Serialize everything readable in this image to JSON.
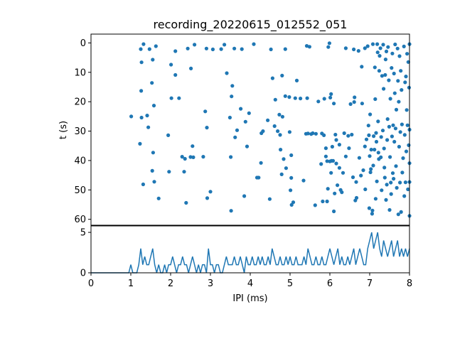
{
  "chart_data": [
    {
      "type": "scatter",
      "panel": "raster",
      "title": "recording_20220615_012552_051",
      "xlabel": "",
      "ylabel": "t (s)",
      "xlim": [
        0,
        8
      ],
      "ylim": [
        62,
        -3
      ],
      "y_inverted": true,
      "y_ticks": [
        0,
        10,
        20,
        30,
        40,
        50,
        60
      ],
      "color": "#1f77b4",
      "points": [
        [
          1.01,
          25.0
        ],
        [
          1.23,
          34.3
        ],
        [
          1.25,
          2.1
        ],
        [
          1.26,
          16.3
        ],
        [
          1.27,
          6.6
        ],
        [
          1.27,
          25.4
        ],
        [
          1.31,
          48.1
        ],
        [
          1.32,
          0.4
        ],
        [
          1.41,
          24.7
        ],
        [
          1.44,
          28.7
        ],
        [
          1.47,
          2.1
        ],
        [
          1.53,
          13.6
        ],
        [
          1.54,
          43.5
        ],
        [
          1.55,
          5.7
        ],
        [
          1.56,
          37.3
        ],
        [
          1.58,
          21.3
        ],
        [
          1.59,
          47.2
        ],
        [
          1.63,
          1.1
        ],
        [
          1.7,
          52.9
        ],
        [
          1.94,
          31.4
        ],
        [
          1.96,
          43.8
        ],
        [
          2.01,
          7.4
        ],
        [
          2.02,
          18.8
        ],
        [
          2.12,
          2.8
        ],
        [
          2.12,
          10.9
        ],
        [
          2.21,
          18.8
        ],
        [
          2.29,
          38.7
        ],
        [
          2.34,
          43.8
        ],
        [
          2.36,
          39.4
        ],
        [
          2.39,
          54.4
        ],
        [
          2.43,
          1.9
        ],
        [
          2.5,
          38.8
        ],
        [
          2.51,
          8.7
        ],
        [
          2.55,
          35.1
        ],
        [
          2.57,
          38.9
        ],
        [
          2.6,
          0.6
        ],
        [
          2.82,
          38.7
        ],
        [
          2.87,
          23.3
        ],
        [
          2.9,
          1.9
        ],
        [
          2.91,
          28.8
        ],
        [
          2.92,
          52.8
        ],
        [
          3.0,
          50.6
        ],
        [
          3.06,
          2.2
        ],
        [
          3.27,
          2.1
        ],
        [
          3.35,
          0.6
        ],
        [
          3.41,
          10.3
        ],
        [
          3.49,
          25.4
        ],
        [
          3.51,
          38.8
        ],
        [
          3.52,
          57.1
        ],
        [
          3.53,
          18.2
        ],
        [
          3.55,
          14.6
        ],
        [
          3.6,
          1.9
        ],
        [
          3.62,
          32.1
        ],
        [
          3.67,
          29.7
        ],
        [
          3.76,
          22.4
        ],
        [
          3.79,
          2.1
        ],
        [
          3.85,
          52.1
        ],
        [
          3.88,
          26.8
        ],
        [
          3.92,
          35.2
        ],
        [
          3.97,
          23.9
        ],
        [
          4.09,
          0.4
        ],
        [
          4.17,
          45.8
        ],
        [
          4.21,
          45.8
        ],
        [
          4.27,
          40.8
        ],
        [
          4.28,
          30.7
        ],
        [
          4.32,
          30.0
        ],
        [
          4.44,
          26.3
        ],
        [
          4.49,
          53.1
        ],
        [
          4.52,
          2.2
        ],
        [
          4.56,
          12.0
        ],
        [
          4.61,
          28.3
        ],
        [
          4.63,
          19.3
        ],
        [
          4.69,
          30.0
        ],
        [
          4.73,
          24.4
        ],
        [
          4.75,
          31.3
        ],
        [
          4.76,
          36.3
        ],
        [
          4.79,
          44.7
        ],
        [
          4.8,
          11.1
        ],
        [
          4.81,
          25.1
        ],
        [
          4.84,
          39.5
        ],
        [
          4.88,
          18.1
        ],
        [
          4.88,
          2.1
        ],
        [
          4.9,
          42.6
        ],
        [
          4.98,
          18.4
        ],
        [
          4.99,
          30.3
        ],
        [
          5.01,
          50.1
        ],
        [
          5.03,
          38.2
        ],
        [
          5.03,
          45.9
        ],
        [
          5.04,
          55.1
        ],
        [
          5.08,
          54.2
        ],
        [
          5.13,
          18.8
        ],
        [
          5.17,
          12.8
        ],
        [
          5.26,
          18.9
        ],
        [
          5.34,
          46.8
        ],
        [
          5.4,
          30.9
        ],
        [
          5.42,
          1.0
        ],
        [
          5.43,
          18.8
        ],
        [
          5.45,
          30.8
        ],
        [
          5.49,
          1.3
        ],
        [
          5.53,
          31.0
        ],
        [
          5.57,
          30.7
        ],
        [
          5.63,
          55.2
        ],
        [
          5.65,
          30.9
        ],
        [
          5.71,
          19.9
        ],
        [
          5.78,
          41.2
        ],
        [
          5.8,
          30.8
        ],
        [
          5.82,
          53.9
        ],
        [
          5.85,
          31.4
        ],
        [
          5.86,
          19.0
        ],
        [
          5.9,
          38.6
        ],
        [
          5.9,
          35.8
        ],
        [
          5.93,
          40.2
        ],
        [
          5.93,
          53.9
        ],
        [
          5.95,
          49.6
        ],
        [
          5.96,
          1.4
        ],
        [
          5.99,
          0.1
        ],
        [
          6.0,
          40.3
        ],
        [
          6.01,
          18.6
        ],
        [
          6.03,
          44.2
        ],
        [
          6.03,
          17.4
        ],
        [
          6.04,
          40.1
        ],
        [
          6.06,
          35.3
        ],
        [
          6.08,
          40.1
        ],
        [
          6.1,
          20.6
        ],
        [
          6.1,
          57.3
        ],
        [
          6.12,
          51.2
        ],
        [
          6.14,
          31.2
        ],
        [
          6.16,
          41.0
        ],
        [
          6.16,
          33.0
        ],
        [
          6.19,
          48.4
        ],
        [
          6.24,
          42.5
        ],
        [
          6.24,
          34.6
        ],
        [
          6.27,
          50.0
        ],
        [
          6.3,
          50.8
        ],
        [
          6.33,
          44.2
        ],
        [
          6.36,
          30.7
        ],
        [
          6.4,
          38.6
        ],
        [
          6.4,
          1.8
        ],
        [
          6.46,
          31.6
        ],
        [
          6.48,
          35.8
        ],
        [
          6.52,
          20.8
        ],
        [
          6.55,
          31.2
        ],
        [
          6.58,
          45.7
        ],
        [
          6.6,
          2.2
        ],
        [
          6.61,
          20.1
        ],
        [
          6.62,
          18.5
        ],
        [
          6.64,
          53.6
        ],
        [
          6.66,
          47.3
        ],
        [
          6.67,
          52.7
        ],
        [
          6.72,
          2.7
        ],
        [
          6.74,
          39.1
        ],
        [
          6.78,
          45.1
        ],
        [
          6.8,
          8.1
        ],
        [
          6.81,
          20.6
        ],
        [
          6.84,
          43.3
        ],
        [
          6.88,
          35.2
        ],
        [
          6.88,
          1.8
        ],
        [
          6.89,
          49.8
        ],
        [
          6.92,
          32.8
        ],
        [
          6.95,
          1.1
        ],
        [
          6.97,
          28.1
        ],
        [
          6.98,
          31.4
        ],
        [
          6.99,
          56.2
        ],
        [
          7.0,
          38.5
        ],
        [
          7.01,
          24.3
        ],
        [
          7.02,
          44.0
        ],
        [
          7.03,
          42.9
        ],
        [
          7.04,
          36.3
        ],
        [
          7.06,
          58.1
        ],
        [
          7.07,
          57.0
        ],
        [
          7.08,
          0.4
        ],
        [
          7.09,
          41.7
        ],
        [
          7.1,
          31.7
        ],
        [
          7.12,
          36.3
        ],
        [
          7.13,
          8.3
        ],
        [
          7.14,
          19.1
        ],
        [
          7.15,
          53.0
        ],
        [
          7.16,
          30.6
        ],
        [
          7.17,
          33.6
        ],
        [
          7.18,
          47.1
        ],
        [
          7.19,
          0.4
        ],
        [
          7.2,
          3.2
        ],
        [
          7.21,
          26.7
        ],
        [
          7.22,
          37.3
        ],
        [
          7.23,
          39.5
        ],
        [
          7.24,
          9.5
        ],
        [
          7.25,
          4.4
        ],
        [
          7.27,
          1.8
        ],
        [
          7.28,
          38.9
        ],
        [
          7.29,
          32.0
        ],
        [
          7.3,
          50.1
        ],
        [
          7.31,
          11.2
        ],
        [
          7.33,
          29.8
        ],
        [
          7.34,
          0.6
        ],
        [
          7.35,
          15.6
        ],
        [
          7.36,
          35.9
        ],
        [
          7.37,
          42.4
        ],
        [
          7.38,
          45.8
        ],
        [
          7.39,
          10.9
        ],
        [
          7.4,
          5.6
        ],
        [
          7.41,
          53.4
        ],
        [
          7.42,
          2.9
        ],
        [
          7.43,
          48.2
        ],
        [
          7.44,
          33.0
        ],
        [
          7.45,
          25.9
        ],
        [
          7.46,
          1.4
        ],
        [
          7.48,
          12.7
        ],
        [
          7.49,
          28.5
        ],
        [
          7.5,
          56.8
        ],
        [
          7.51,
          38.8
        ],
        [
          7.52,
          19.0
        ],
        [
          7.53,
          47.5
        ],
        [
          7.54,
          51.4
        ],
        [
          7.55,
          8.5
        ],
        [
          7.56,
          31.8
        ],
        [
          7.57,
          3.6
        ],
        [
          7.58,
          44.3
        ],
        [
          7.59,
          28.0
        ],
        [
          7.6,
          46.2
        ],
        [
          7.61,
          10.4
        ],
        [
          7.62,
          33.6
        ],
        [
          7.63,
          17.1
        ],
        [
          7.64,
          0.5
        ],
        [
          7.65,
          29.1
        ],
        [
          7.66,
          41.9
        ],
        [
          7.67,
          22.7
        ],
        [
          7.68,
          49.3
        ],
        [
          7.7,
          1.9
        ],
        [
          7.71,
          12.9
        ],
        [
          7.72,
          58.3
        ],
        [
          7.73,
          20.0
        ],
        [
          7.74,
          35.3
        ],
        [
          7.75,
          4.5
        ],
        [
          7.76,
          47.5
        ],
        [
          7.77,
          30.3
        ],
        [
          7.78,
          9.5
        ],
        [
          7.79,
          57.5
        ],
        [
          7.8,
          16.0
        ],
        [
          7.81,
          27.7
        ],
        [
          7.82,
          44.1
        ],
        [
          7.84,
          39.2
        ],
        [
          7.86,
          1.2
        ],
        [
          7.87,
          52.1
        ],
        [
          7.88,
          31.3
        ],
        [
          7.89,
          13.4
        ],
        [
          7.9,
          47.4
        ],
        [
          7.91,
          11.4
        ],
        [
          7.92,
          36.9
        ],
        [
          7.93,
          22.8
        ],
        [
          7.94,
          3.7
        ],
        [
          7.95,
          28.0
        ],
        [
          7.96,
          49.8
        ],
        [
          7.97,
          6.5
        ],
        [
          7.98,
          34.8
        ],
        [
          7.99,
          15.2
        ],
        [
          8.0,
          47.3
        ],
        [
          8.0,
          29.5
        ],
        [
          8.0,
          0.4
        ],
        [
          8.0,
          40.9
        ],
        [
          8.0,
          58.8
        ]
      ]
    },
    {
      "type": "line",
      "panel": "histogram",
      "title": "",
      "xlabel": "IPI (ms)",
      "ylabel": "",
      "xlim": [
        0,
        8
      ],
      "ylim": [
        0,
        5.8
      ],
      "x_ticks": [
        0,
        1,
        2,
        3,
        4,
        5,
        6,
        7,
        8
      ],
      "y_ticks": [
        0,
        5
      ],
      "color": "#1f77b4",
      "x": [
        0.0,
        0.05,
        0.1,
        0.15,
        0.2,
        0.25,
        0.3,
        0.35,
        0.4,
        0.45,
        0.5,
        0.55,
        0.6,
        0.65,
        0.7,
        0.75,
        0.8,
        0.85,
        0.9,
        0.95,
        1.0,
        1.05,
        1.1,
        1.15,
        1.2,
        1.25,
        1.3,
        1.35,
        1.4,
        1.45,
        1.5,
        1.55,
        1.6,
        1.65,
        1.7,
        1.75,
        1.8,
        1.85,
        1.9,
        1.95,
        2.0,
        2.05,
        2.1,
        2.15,
        2.2,
        2.25,
        2.3,
        2.35,
        2.4,
        2.45,
        2.5,
        2.55,
        2.6,
        2.65,
        2.7,
        2.75,
        2.8,
        2.85,
        2.9,
        2.95,
        3.0,
        3.05,
        3.1,
        3.15,
        3.2,
        3.25,
        3.3,
        3.35,
        3.4,
        3.45,
        3.5,
        3.55,
        3.6,
        3.65,
        3.7,
        3.75,
        3.8,
        3.85,
        3.9,
        3.95,
        4.0,
        4.05,
        4.1,
        4.15,
        4.2,
        4.25,
        4.3,
        4.35,
        4.4,
        4.45,
        4.5,
        4.55,
        4.6,
        4.65,
        4.7,
        4.75,
        4.8,
        4.85,
        4.9,
        4.95,
        5.0,
        5.05,
        5.1,
        5.15,
        5.2,
        5.25,
        5.3,
        5.35,
        5.4,
        5.45,
        5.5,
        5.55,
        5.6,
        5.65,
        5.7,
        5.75,
        5.8,
        5.85,
        5.9,
        5.95,
        6.0,
        6.05,
        6.1,
        6.15,
        6.2,
        6.25,
        6.3,
        6.35,
        6.4,
        6.45,
        6.5,
        6.55,
        6.6,
        6.65,
        6.7,
        6.75,
        6.8,
        6.85,
        6.9,
        6.95,
        7.0,
        7.05,
        7.1,
        7.15,
        7.2,
        7.25,
        7.3,
        7.35,
        7.4,
        7.45,
        7.5,
        7.55,
        7.6,
        7.65,
        7.7,
        7.75,
        7.8,
        7.85,
        7.9,
        7.95,
        8.0
      ],
      "y": [
        0,
        0,
        0,
        0,
        0,
        0,
        0,
        0,
        0,
        0,
        0,
        0,
        0,
        0,
        0,
        0,
        0,
        0,
        0,
        0,
        1,
        0,
        0,
        0,
        1,
        3,
        1,
        2,
        1,
        1,
        2,
        3,
        1,
        0,
        1,
        0,
        0,
        1,
        0,
        1,
        1,
        2,
        1,
        0,
        1,
        1,
        2,
        1,
        1,
        0,
        1,
        2,
        1,
        0,
        1,
        0,
        1,
        1,
        0,
        3,
        1,
        1,
        0,
        1,
        1,
        0,
        0,
        1,
        2,
        1,
        1,
        1,
        2,
        1,
        1,
        2,
        1,
        0,
        2,
        1,
        1,
        2,
        1,
        1,
        2,
        1,
        2,
        1,
        1,
        2,
        1,
        3,
        2,
        1,
        1,
        2,
        1,
        1,
        2,
        1,
        2,
        1,
        1,
        2,
        1,
        1,
        1,
        2,
        1,
        3,
        2,
        1,
        1,
        2,
        1,
        1,
        2,
        1,
        1,
        2,
        3,
        2,
        1,
        2,
        3,
        1,
        2,
        1,
        1,
        2,
        1,
        2,
        3,
        1,
        2,
        3,
        2,
        1,
        1,
        3,
        4,
        5,
        3,
        4,
        5,
        3,
        2,
        4,
        3,
        2,
        3,
        4,
        2,
        3,
        4,
        2,
        3,
        2,
        3,
        2,
        3
      ]
    }
  ]
}
